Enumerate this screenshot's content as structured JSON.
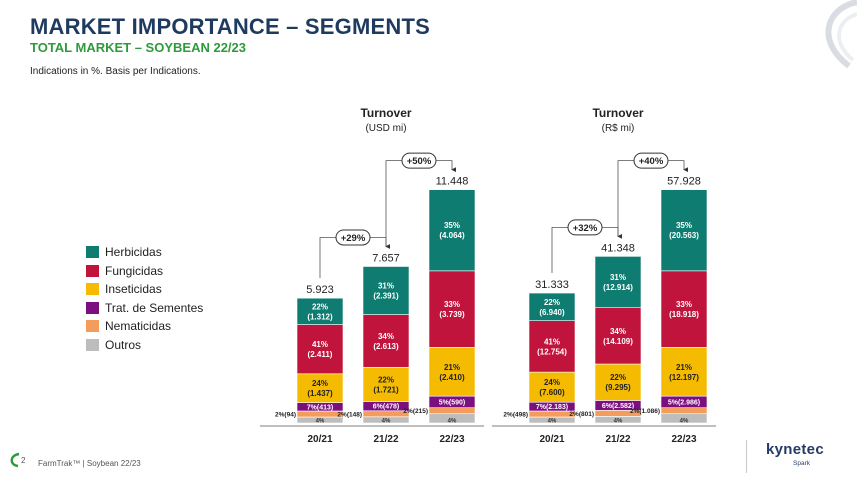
{
  "header": {
    "title": "MARKET IMPORTANCE – SEGMENTS",
    "subtitle": "TOTAL MARKET – SOYBEAN 22/23",
    "note": "Indications in %. Basis per Indications."
  },
  "legend": [
    {
      "label": "Herbicidas",
      "color": "#0f7c71"
    },
    {
      "label": "Fungicidas",
      "color": "#c1143c"
    },
    {
      "label": "Inseticidas",
      "color": "#f5bb00"
    },
    {
      "label": "Trat. de Sementes",
      "color": "#7c0f7e"
    },
    {
      "label": "Nematicidas",
      "color": "#f39c5b"
    },
    {
      "label": "Outros",
      "color": "#bdbdbd"
    }
  ],
  "chart_data": [
    {
      "type": "bar",
      "title": "Turnover",
      "subtitle": "(USD mi)",
      "categories": [
        "20/21",
        "21/22",
        "22/23"
      ],
      "totals": [
        5923,
        7657,
        11448
      ],
      "total_labels": [
        "5.923",
        "7.657",
        "11.448"
      ],
      "series": [
        {
          "name": "Outros",
          "color": "#bdbdbd",
          "pct": [
            4,
            4,
            4
          ],
          "labels": [
            "4%",
            "4%",
            "4%"
          ]
        },
        {
          "name": "Nematicidas",
          "color": "#f39c5b",
          "pct": [
            2,
            2,
            2
          ],
          "labels": [
            "2%(94)",
            "2%(148)",
            "2%(215)"
          ]
        },
        {
          "name": "Trat. de Sementes",
          "color": "#7c0f7e",
          "pct": [
            7,
            6,
            5
          ],
          "labels": [
            "7%(413)",
            "6%(478)",
            "5%(590)"
          ]
        },
        {
          "name": "Inseticidas",
          "color": "#f5bb00",
          "pct": [
            24,
            22,
            21
          ],
          "labels": [
            "24%\n(1.437)",
            "22%\n(1.721)",
            "21%\n(2.410)"
          ]
        },
        {
          "name": "Fungicidas",
          "color": "#c1143c",
          "pct": [
            41,
            34,
            33
          ],
          "labels": [
            "41%\n(2.411)",
            "34%\n(2.613)",
            "33%\n(3.739)"
          ]
        },
        {
          "name": "Herbicidas",
          "color": "#0f7c71",
          "pct": [
            22,
            31,
            35
          ],
          "labels": [
            "22%\n(1.312)",
            "31%\n(2.391)",
            "35%\n(4.064)"
          ]
        }
      ],
      "growth": [
        {
          "from": 0,
          "to": 1,
          "label": "+29%"
        },
        {
          "from": 1,
          "to": 2,
          "label": "+50%"
        }
      ]
    },
    {
      "type": "bar",
      "title": "Turnover",
      "subtitle": "(R$ mi)",
      "categories": [
        "20/21",
        "21/22",
        "22/23"
      ],
      "totals": [
        31333,
        41348,
        57928
      ],
      "total_labels": [
        "31.333",
        "41.348",
        "57.928"
      ],
      "series": [
        {
          "name": "Outros",
          "color": "#bdbdbd",
          "pct": [
            4,
            4,
            4
          ],
          "labels": [
            "4%",
            "4%",
            "4%"
          ]
        },
        {
          "name": "Nematicidas",
          "color": "#f39c5b",
          "pct": [
            2,
            2,
            2
          ],
          "labels": [
            "2%(498)",
            "2%(801)",
            "2%(1.086)"
          ]
        },
        {
          "name": "Trat. de Sementes",
          "color": "#7c0f7e",
          "pct": [
            7,
            6,
            5
          ],
          "labels": [
            "7%(2.183)",
            "6%(2.582)",
            "5%(2.986)"
          ]
        },
        {
          "name": "Inseticidas",
          "color": "#f5bb00",
          "pct": [
            24,
            22,
            21
          ],
          "labels": [
            "24%\n(7.600)",
            "22%\n(9.295)",
            "21%\n(12.197)"
          ]
        },
        {
          "name": "Fungicidas",
          "color": "#c1143c",
          "pct": [
            41,
            34,
            33
          ],
          "labels": [
            "41%\n(12.754)",
            "34%\n(14.109)",
            "33%\n(18.918)"
          ]
        },
        {
          "name": "Herbicidas",
          "color": "#0f7c71",
          "pct": [
            22,
            31,
            35
          ],
          "labels": [
            "22%\n(6.940)",
            "31%\n(12.914)",
            "35%\n(20.563)"
          ]
        }
      ],
      "growth": [
        {
          "from": 0,
          "to": 1,
          "label": "+32%"
        },
        {
          "from": 1,
          "to": 2,
          "label": "+40%"
        }
      ]
    }
  ],
  "footer": {
    "page_number": "2",
    "text": "FarmTrak™ | Soybean 22/23",
    "brand": "kynetec",
    "brand_sub": "Spark"
  }
}
